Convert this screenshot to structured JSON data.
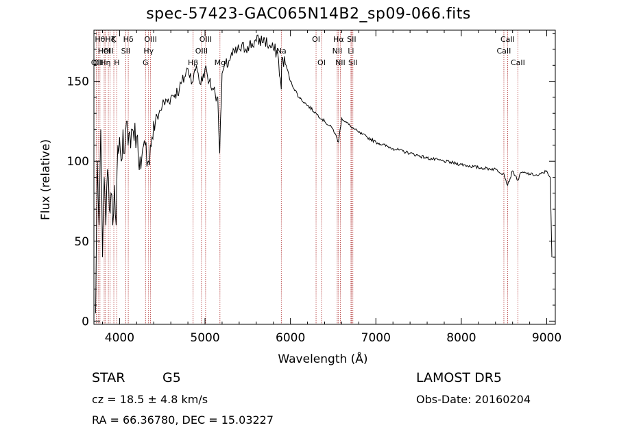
{
  "chart_data": {
    "type": "line",
    "title": "spec-57423-GAC065N14B2_sp09-066.fits",
    "xlabel": "Wavelength (Å)",
    "ylabel": "Flux (relative)",
    "xlim": [
      3700,
      9100
    ],
    "ylim": [
      -2,
      182
    ],
    "xticks": [
      4000,
      5000,
      6000,
      7000,
      8000,
      9000
    ],
    "yticks": [
      0,
      50,
      100,
      150
    ],
    "grid": false,
    "colors": {
      "spectrum": "#000000",
      "lines": "#b03030"
    },
    "series": [
      {
        "values_x": [
          3720,
          3740,
          3760,
          3780,
          3800,
          3820,
          3840,
          3860,
          3880,
          3900,
          3920,
          3940,
          3960,
          3980,
          4000,
          4020,
          4040,
          4060,
          4080,
          4100,
          4150,
          4200,
          4250,
          4300,
          4340,
          4380,
          4420,
          4500,
          4600,
          4700,
          4800,
          4861,
          4900,
          4950,
          5000,
          5050,
          5100,
          5150,
          5172,
          5200,
          5300,
          5400,
          5500,
          5600,
          5700,
          5750,
          5800,
          5850,
          5893,
          5900,
          5950,
          6000,
          6100,
          6200,
          6300,
          6400,
          6500,
          6563,
          6600,
          6700,
          6800,
          6900,
          7000,
          7200,
          7400,
          7600,
          7800,
          8000,
          8200,
          8400,
          8500,
          8542,
          8600,
          8662,
          8700,
          8800,
          8900,
          9000,
          9040,
          9060
        ],
        "values_y": [
          5,
          100,
          60,
          120,
          40,
          90,
          60,
          95,
          70,
          80,
          60,
          85,
          60,
          110,
          115,
          100,
          120,
          105,
          125,
          110,
          120,
          115,
          95,
          110,
          100,
          115,
          125,
          135,
          140,
          145,
          158,
          150,
          160,
          148,
          158,
          150,
          145,
          140,
          105,
          155,
          165,
          170,
          172,
          175,
          176,
          172,
          170,
          168,
          145,
          165,
          160,
          150,
          140,
          135,
          130,
          125,
          120,
          112,
          127,
          122,
          118,
          115,
          112,
          108,
          105,
          102,
          100,
          98,
          96,
          95,
          92,
          85,
          94,
          88,
          93,
          92,
          91,
          94,
          90,
          40
        ]
      }
    ],
    "line_markers": [
      {
        "wave": 3727,
        "row": 2,
        "label": "OII"
      },
      {
        "wave": 3750,
        "row": 2,
        "label": "OII"
      },
      {
        "wave": 3771,
        "row": 0,
        "label": "Hθ"
      },
      {
        "wave": 3820,
        "row": 1,
        "label": "HeI"
      },
      {
        "wave": 3835,
        "row": 2,
        "label": "Hη"
      },
      {
        "wave": 3869,
        "row": 1,
        "label": "OII"
      },
      {
        "wave": 3889,
        "row": 0,
        "label": "Hζ"
      },
      {
        "wave": 3933,
        "row": 0,
        "label": "K"
      },
      {
        "wave": 3968,
        "row": 2,
        "label": "H"
      },
      {
        "wave": 4072,
        "row": 1,
        "label": "SII"
      },
      {
        "wave": 4102,
        "row": 0,
        "label": "Hδ"
      },
      {
        "wave": 4304,
        "row": 2,
        "label": "G"
      },
      {
        "wave": 4340,
        "row": 1,
        "label": "Hγ"
      },
      {
        "wave": 4363,
        "row": 0,
        "label": "OIII"
      },
      {
        "wave": 4861,
        "row": 2,
        "label": "Hβ"
      },
      {
        "wave": 4959,
        "row": 1,
        "label": "OIII"
      },
      {
        "wave": 5007,
        "row": 0,
        "label": "OIII"
      },
      {
        "wave": 5175,
        "row": 2,
        "label": "Mg"
      },
      {
        "wave": 5893,
        "row": 1,
        "label": "Na"
      },
      {
        "wave": 6300,
        "row": 0,
        "label": "OI"
      },
      {
        "wave": 6364,
        "row": 2,
        "label": "OI"
      },
      {
        "wave": 6548,
        "row": 1,
        "label": "NII"
      },
      {
        "wave": 6563,
        "row": 0,
        "label": "Hα"
      },
      {
        "wave": 6584,
        "row": 2,
        "label": "NII"
      },
      {
        "wave": 6708,
        "row": 1,
        "label": "Li"
      },
      {
        "wave": 6716,
        "row": 0,
        "label": "SII"
      },
      {
        "wave": 6731,
        "row": 2,
        "label": "SII"
      },
      {
        "wave": 8498,
        "row": 1,
        "label": "CaII"
      },
      {
        "wave": 8542,
        "row": 0,
        "label": "CaII"
      },
      {
        "wave": 8662,
        "row": 2,
        "label": "CaII"
      }
    ]
  },
  "info": {
    "object_class": "STAR",
    "subclass": "G5",
    "survey": "LAMOST DR5",
    "cz": "cz = 18.5 ± 4.8 km/s",
    "obs_date": "Obs-Date: 20160204",
    "coords": "RA =  66.36780, DEC =  15.03227"
  }
}
